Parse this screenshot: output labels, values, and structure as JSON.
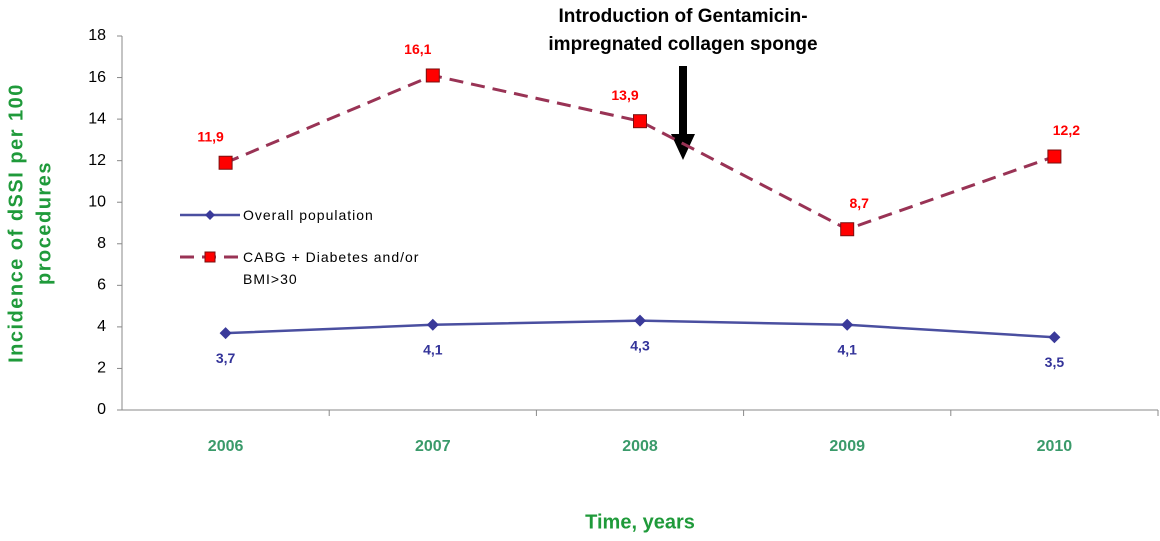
{
  "chart_data": {
    "type": "line",
    "annotation": [
      "Introduction of Gentamicin-",
      "impregnated collagen sponge"
    ],
    "x_label": "Time, years",
    "y_label": [
      "Incidence of dSSI per 100",
      "procedures"
    ],
    "categories": [
      "2006",
      "2007",
      "2008",
      "2009",
      "2010"
    ],
    "series": [
      {
        "name": "Overall population",
        "color": "#4a4fa0",
        "marker_color": "#3a3a9a",
        "label_color": "#333399",
        "dashed": false,
        "marker": "diamond",
        "values": [
          3.7,
          4.1,
          4.3,
          4.1,
          3.5
        ],
        "value_labels": [
          "3,7",
          "4,1",
          "4,3",
          "4,1",
          "3,5"
        ]
      },
      {
        "name": "CABG + Diabetes and/or BMI>30",
        "color": "#993355",
        "marker_color": "#ff0000",
        "label_color": "#ff0000",
        "dashed": true,
        "marker": "square",
        "values": [
          11.9,
          16.1,
          13.9,
          8.7,
          12.2
        ],
        "value_labels": [
          "11,9",
          "16,1",
          "13,9",
          "8,7",
          "12,2"
        ]
      }
    ],
    "ylim": [
      0,
      18
    ],
    "yticks": [
      0,
      2,
      4,
      6,
      8,
      10,
      12,
      14,
      16,
      18
    ],
    "grid": false
  }
}
